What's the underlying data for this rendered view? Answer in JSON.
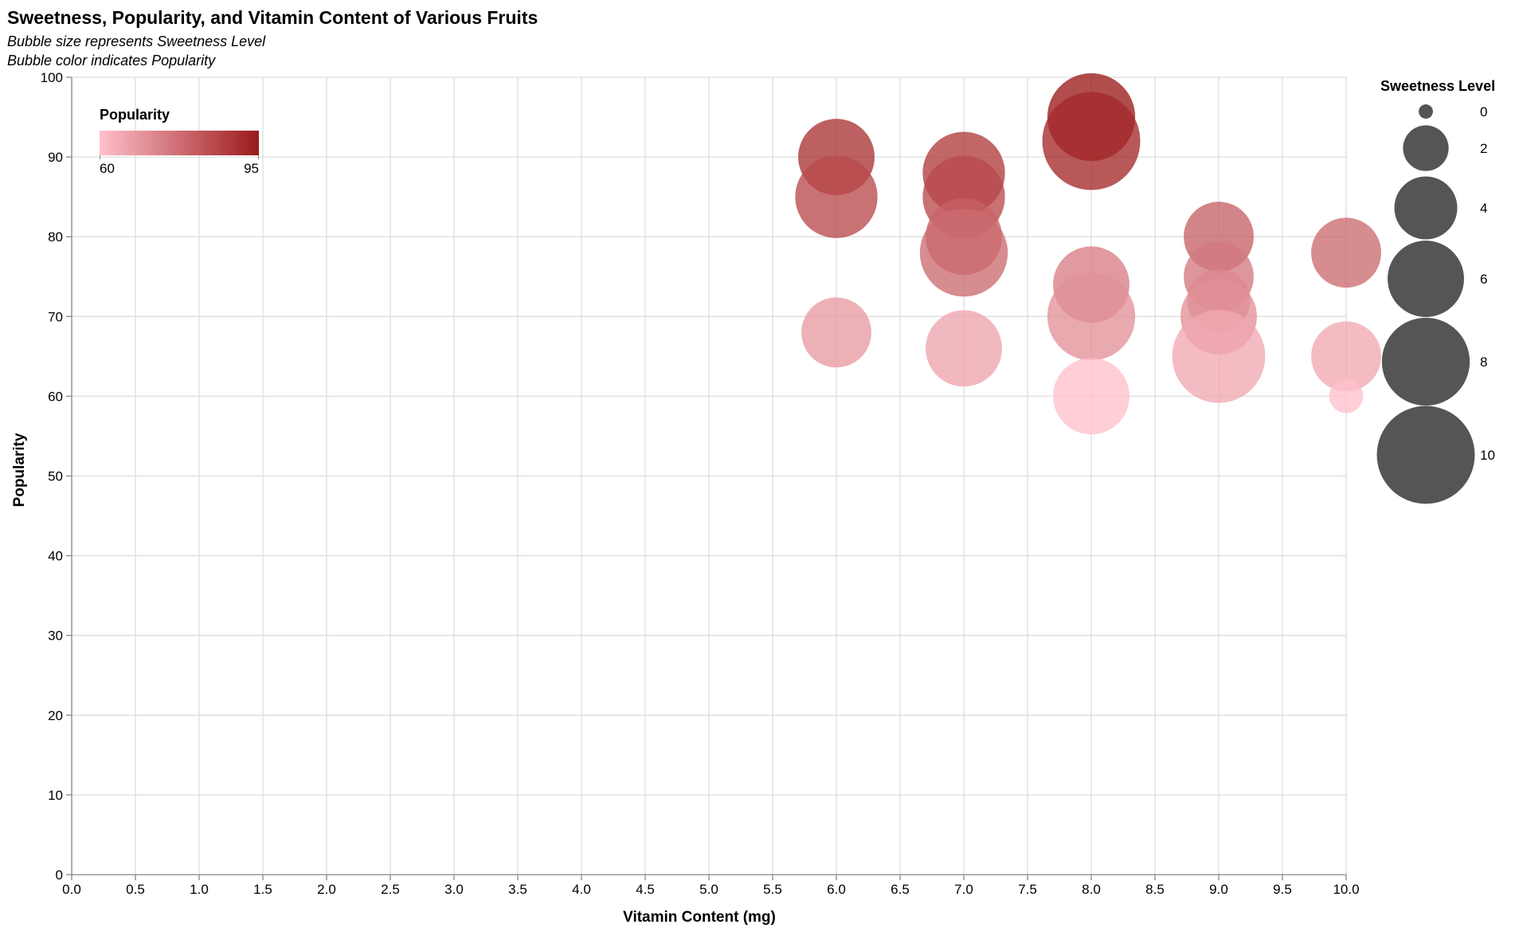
{
  "chart_data": {
    "type": "scatter",
    "title": "Sweetness, Popularity, and Vitamin Content of Various Fruits",
    "subtitle": [
      "Bubble size represents Sweetness Level",
      "Bubble color indicates Popularity"
    ],
    "xlabel": "Vitamin Content (mg)",
    "ylabel": "Popularity",
    "xlim": [
      0,
      10
    ],
    "ylim": [
      0,
      100
    ],
    "x_ticks": [
      "0.0",
      "0.5",
      "1.0",
      "1.5",
      "2.0",
      "2.5",
      "3.0",
      "3.5",
      "4.0",
      "4.5",
      "5.0",
      "5.5",
      "6.0",
      "6.5",
      "7.0",
      "7.5",
      "8.0",
      "8.5",
      "9.0",
      "9.5",
      "10.0"
    ],
    "y_ticks": [
      "0",
      "10",
      "20",
      "30",
      "40",
      "50",
      "60",
      "70",
      "80",
      "90",
      "100"
    ],
    "grid": true,
    "size_legend": {
      "title": "Sweetness Level",
      "values": [
        0,
        2,
        4,
        6,
        8,
        10
      ],
      "placement": "top-right"
    },
    "color_legend": {
      "title": "Popularity",
      "min": 60,
      "max": 95,
      "min_label": "60",
      "max_label": "95",
      "color_low": "#ffc0cb",
      "color_high": "#9b1b1b",
      "placement": "top-left"
    },
    "points": [
      {
        "x": 6,
        "y": 90,
        "sweetness": 6
      },
      {
        "x": 6,
        "y": 85,
        "sweetness": 7
      },
      {
        "x": 6,
        "y": 68,
        "sweetness": 5
      },
      {
        "x": 7,
        "y": 88,
        "sweetness": 7
      },
      {
        "x": 7,
        "y": 85,
        "sweetness": 7
      },
      {
        "x": 7,
        "y": 80,
        "sweetness": 6
      },
      {
        "x": 7,
        "y": 78,
        "sweetness": 8
      },
      {
        "x": 7,
        "y": 66,
        "sweetness": 6
      },
      {
        "x": 8,
        "y": 95,
        "sweetness": 8
      },
      {
        "x": 8,
        "y": 92,
        "sweetness": 10
      },
      {
        "x": 8,
        "y": 74,
        "sweetness": 6
      },
      {
        "x": 8,
        "y": 70,
        "sweetness": 8
      },
      {
        "x": 8,
        "y": 60,
        "sweetness": 6
      },
      {
        "x": 9,
        "y": 80,
        "sweetness": 5
      },
      {
        "x": 9,
        "y": 75,
        "sweetness": 5
      },
      {
        "x": 9,
        "y": 72,
        "sweetness": 4
      },
      {
        "x": 9,
        "y": 70,
        "sweetness": 6
      },
      {
        "x": 9,
        "y": 65,
        "sweetness": 9
      },
      {
        "x": 10,
        "y": 78,
        "sweetness": 5
      },
      {
        "x": 10,
        "y": 65,
        "sweetness": 5
      },
      {
        "x": 10,
        "y": 60,
        "sweetness": 1
      }
    ]
  }
}
